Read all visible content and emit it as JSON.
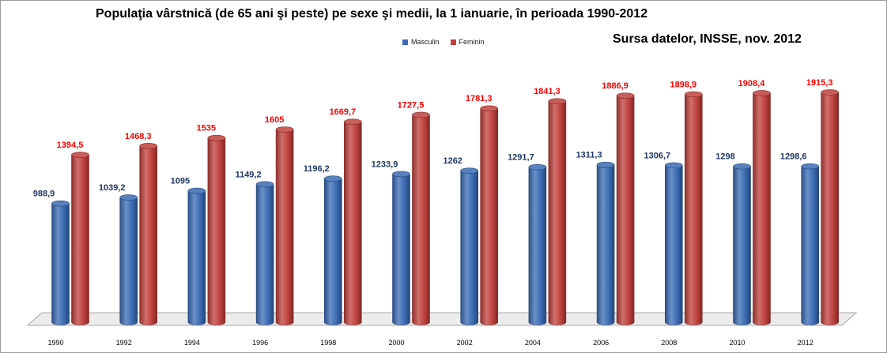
{
  "chart_data": {
    "type": "bar",
    "title": "Populaţia vârstnică (de 65 ani şi peste) pe sexe şi medii, la 1 ianuarie, în perioada 1990-2012",
    "source": "Sursa datelor, INSSE, nov. 2012",
    "categories": [
      "1990",
      "1992",
      "1994",
      "1996",
      "1998",
      "2000",
      "2002",
      "2004",
      "2006",
      "2008",
      "2010",
      "2012"
    ],
    "series": [
      {
        "name": "Masculin",
        "color": "#3a6bb4",
        "values": [
          988.9,
          1039.2,
          1095,
          1149.2,
          1196.2,
          1233.9,
          1262,
          1291.7,
          1311.3,
          1306.7,
          1298,
          1298.6
        ],
        "labels": [
          "988,9",
          "1039,2",
          "1095",
          "1149,2",
          "1196,2",
          "1233,9",
          "1262",
          "1291,7",
          "1311,3",
          "1306,7",
          "1298",
          "1298,6"
        ],
        "label_color": "#1f3864"
      },
      {
        "name": "Feminin",
        "color": "#c0403c",
        "values": [
          1394.5,
          1468.3,
          1535,
          1605,
          1669.7,
          1727.5,
          1781.3,
          1841.3,
          1886.9,
          1898.9,
          1908.4,
          1915.3
        ],
        "labels": [
          "1394,5",
          "1468,3",
          "1535",
          "1605",
          "1669,7",
          "1727,5",
          "1781,3",
          "1841,3",
          "1886,9",
          "1898,9",
          "1908,4",
          "1915,3"
        ],
        "label_color": "#ff0000"
      }
    ],
    "xlabel": "",
    "ylabel": "",
    "ylim": [
      0,
      2500
    ],
    "legend_position": "top-center",
    "grid": false
  }
}
